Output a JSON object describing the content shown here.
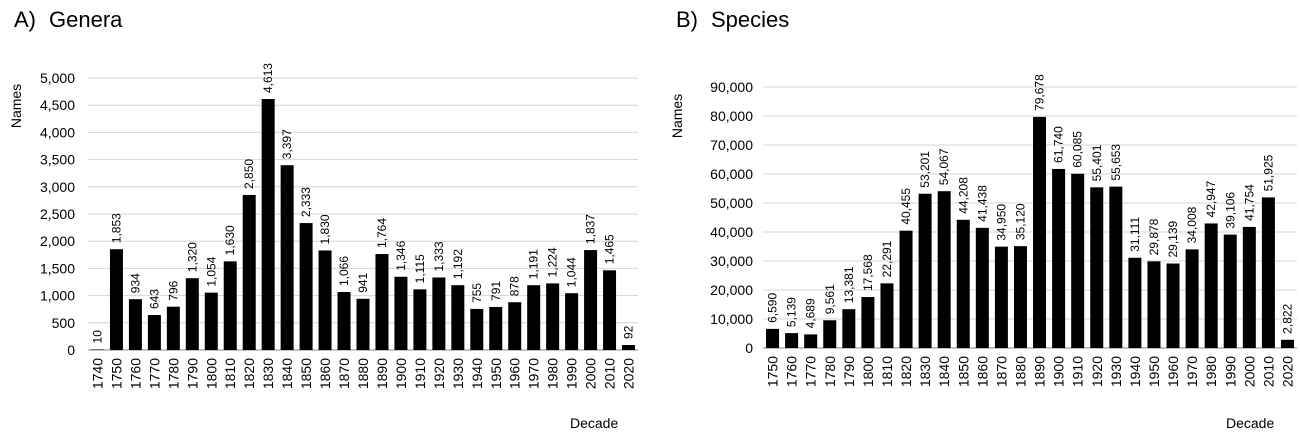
{
  "chart_data": [
    {
      "type": "bar",
      "panel_label": "A)",
      "title": "Genera",
      "xlabel": "Decade",
      "ylabel": "Names",
      "ylim": [
        0,
        5000
      ],
      "yticks": [
        "0",
        "500",
        "1,000",
        "1,500",
        "2,000",
        "2,500",
        "3,000",
        "3,500",
        "4,000",
        "4,500",
        "5,000"
      ],
      "ytick_values": [
        0,
        500,
        1000,
        1500,
        2000,
        2500,
        3000,
        3500,
        4000,
        4500,
        5000
      ],
      "grid": true,
      "categories": [
        "1740",
        "1750",
        "1760",
        "1770",
        "1780",
        "1790",
        "1800",
        "1810",
        "1820",
        "1830",
        "1840",
        "1850",
        "1860",
        "1870",
        "1880",
        "1890",
        "1900",
        "1910",
        "1920",
        "1930",
        "1940",
        "1950",
        "1960",
        "1970",
        "1980",
        "1990",
        "2000",
        "2010",
        "2020"
      ],
      "values": [
        10,
        1853,
        934,
        643,
        796,
        1320,
        1054,
        1630,
        2850,
        4613,
        3397,
        2333,
        1830,
        1066,
        941,
        1764,
        1346,
        1115,
        1333,
        1192,
        755,
        791,
        878,
        1191,
        1224,
        1044,
        1837,
        1465,
        92
      ],
      "value_labels": [
        "10",
        "1,853",
        "934",
        "643",
        "796",
        "1,320",
        "1,054",
        "1,630",
        "2,850",
        "4,613",
        "3,397",
        "2,333",
        "1,830",
        "1,066",
        "941",
        "1,764",
        "1,346",
        "1,115",
        "1,333",
        "1,192",
        "755",
        "791",
        "878",
        "1,191",
        "1,224",
        "1,044",
        "1,837",
        "1,465",
        "92"
      ],
      "bar_color": "#000000"
    },
    {
      "type": "bar",
      "panel_label": "B)",
      "title": "Species",
      "xlabel": "Decade",
      "ylabel": "Names",
      "ylim": [
        0,
        90000
      ],
      "yticks": [
        "0",
        "10,000",
        "20,000",
        "30,000",
        "40,000",
        "50,000",
        "60,000",
        "70,000",
        "80,000",
        "90,000"
      ],
      "ytick_values": [
        0,
        10000,
        20000,
        30000,
        40000,
        50000,
        60000,
        70000,
        80000,
        90000
      ],
      "grid": true,
      "categories": [
        "1750",
        "1760",
        "1770",
        "1780",
        "1790",
        "1800",
        "1810",
        "1820",
        "1830",
        "1840",
        "1850",
        "1860",
        "1870",
        "1880",
        "1890",
        "1900",
        "1910",
        "1920",
        "1930",
        "1940",
        "1950",
        "1960",
        "1970",
        "1980",
        "1990",
        "2000",
        "2010",
        "2020"
      ],
      "values": [
        6590,
        5139,
        4689,
        9561,
        13381,
        17568,
        22291,
        40455,
        53201,
        54067,
        44208,
        41438,
        34950,
        35120,
        79678,
        61740,
        60085,
        55401,
        55653,
        31111,
        29878,
        29139,
        34008,
        42947,
        39106,
        41754,
        51925,
        2822
      ],
      "value_labels": [
        "6,590",
        "5,139",
        "4,689",
        "9,561",
        "13,381",
        "17,568",
        "22,291",
        "40,455",
        "53,201",
        "54,067",
        "44,208",
        "41,438",
        "34,950",
        "35,120",
        "79,678",
        "61,740",
        "60,085",
        "55,401",
        "55,653",
        "31,111",
        "29,878",
        "29,139",
        "34,008",
        "42,947",
        "39,106",
        "41,754",
        "51,925",
        "2,822"
      ],
      "bar_color": "#000000"
    }
  ]
}
